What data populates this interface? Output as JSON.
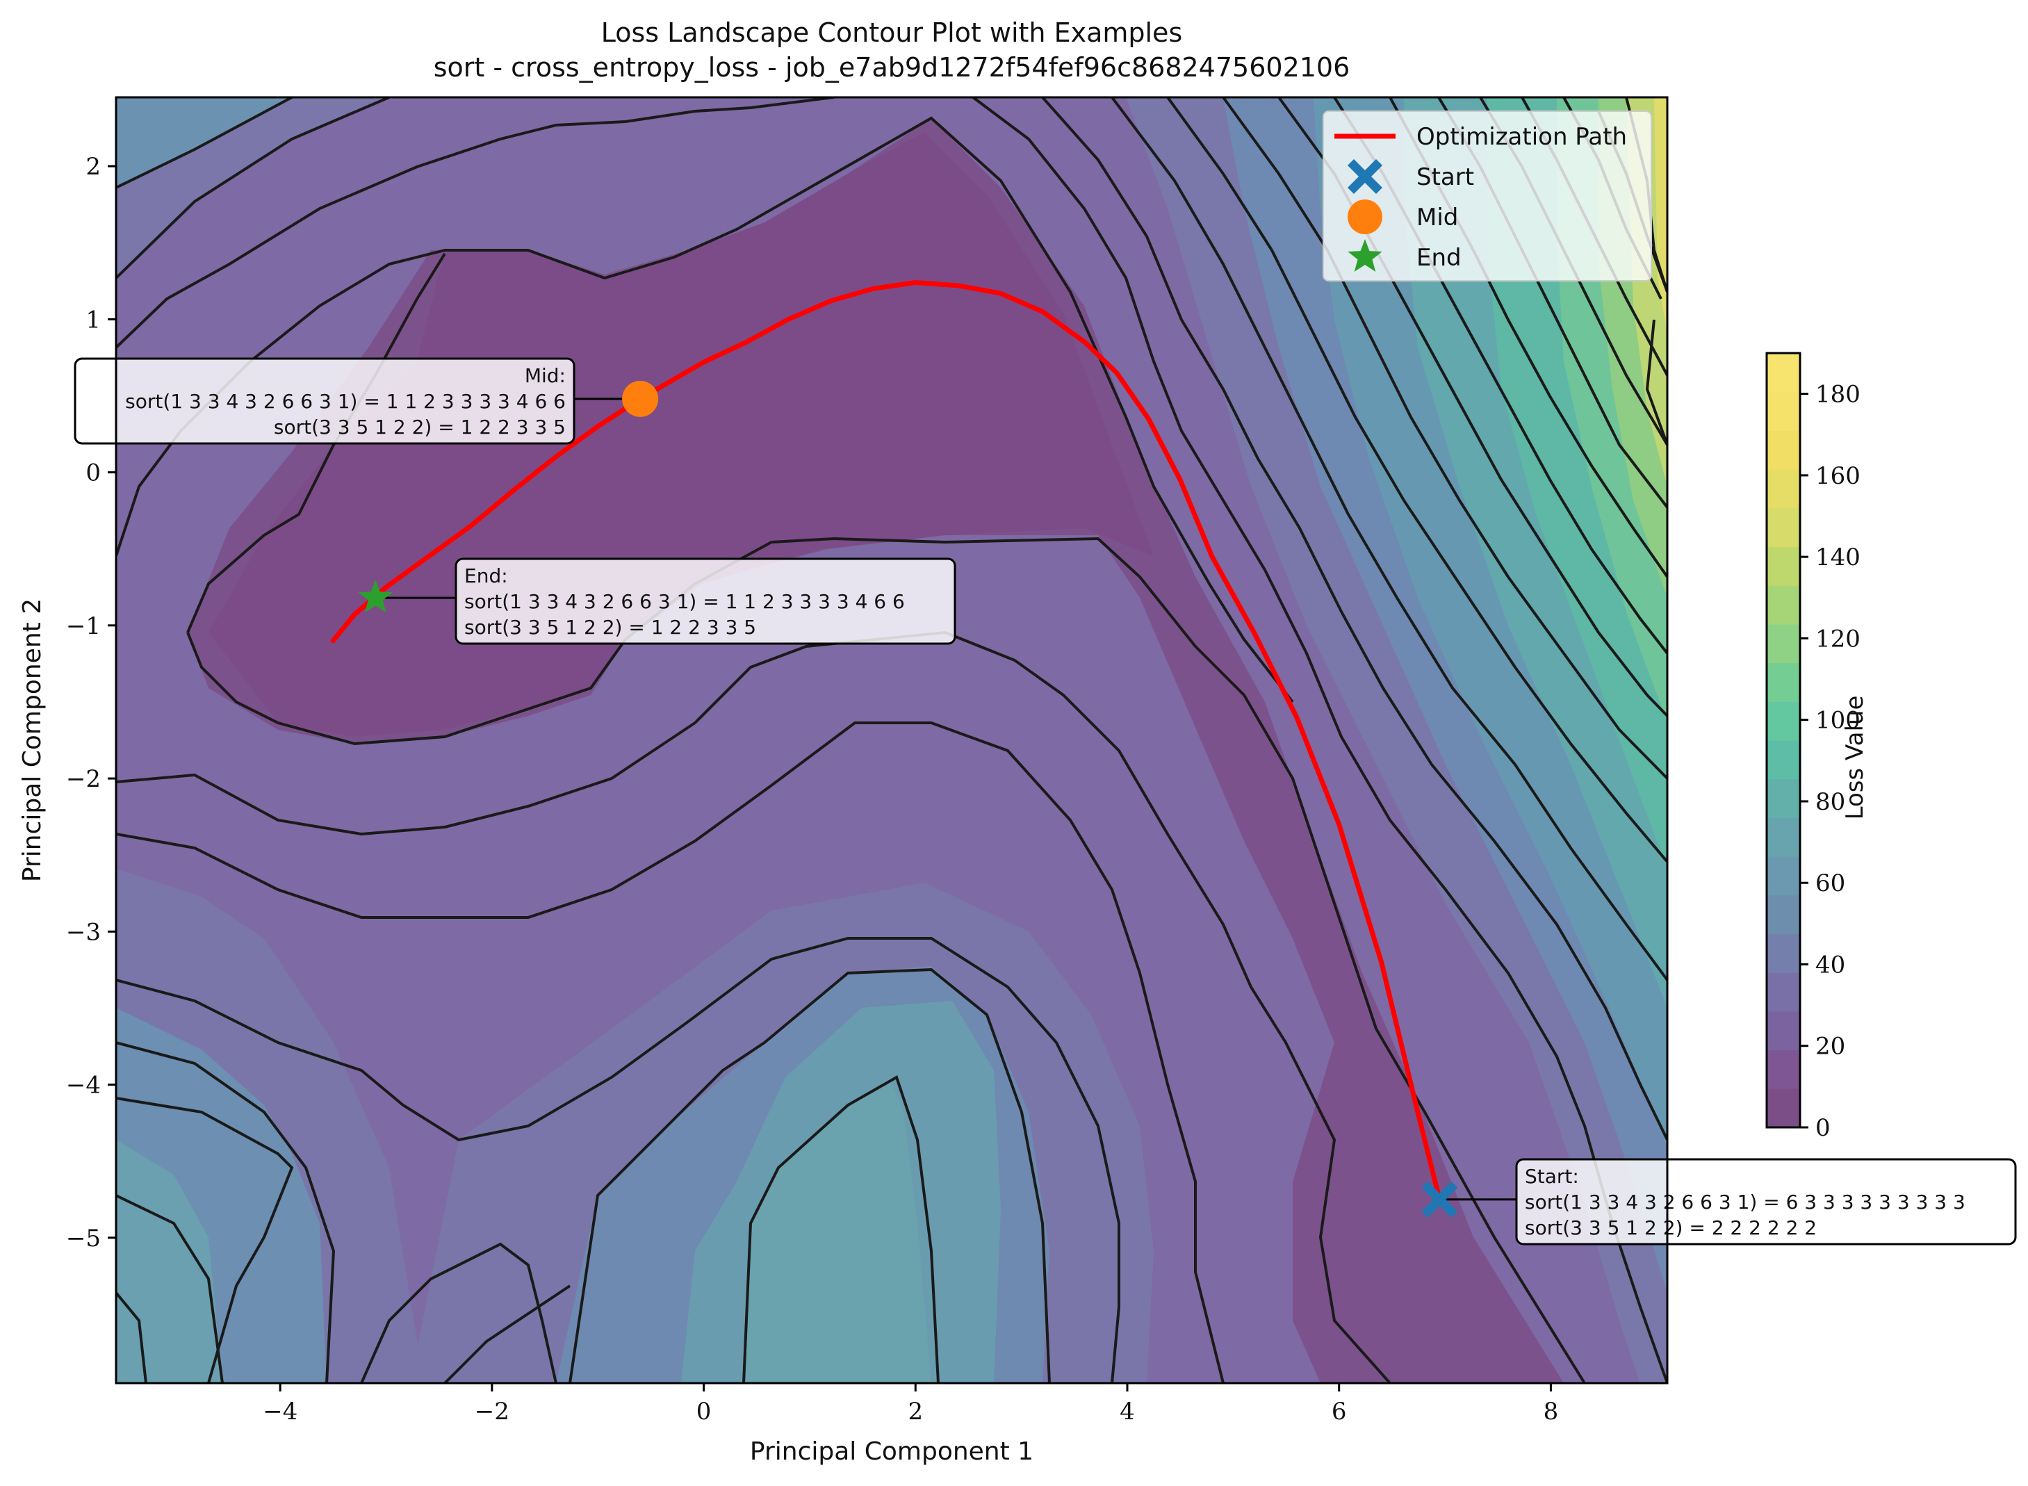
{
  "chart_data": {
    "type": "contour",
    "title": "Loss Landscape Contour Plot with Examples",
    "subtitle": "sort - cross_entropy_loss - job_e7ab9d1272f54fef96c8682475602106",
    "xlabel": "Principal Component 1",
    "ylabel": "Principal Component 2",
    "xlim": [
      -5.55,
      9.1
    ],
    "ylim": [
      -5.95,
      2.45
    ],
    "x_ticks": [
      -4,
      -2,
      0,
      2,
      4,
      6,
      8
    ],
    "x_tick_labels": [
      "−4",
      "−2",
      "0",
      "2",
      "4",
      "6",
      "8"
    ],
    "y_ticks": [
      2,
      1,
      0,
      -1,
      -2,
      -3,
      -4,
      -5
    ],
    "y_tick_labels": [
      "2",
      "1",
      "0",
      "−1",
      "−2",
      "−3",
      "−4",
      "−5"
    ],
    "colorbar": {
      "label": "Loss Value",
      "range": [
        0,
        190
      ],
      "ticks": [
        0,
        20,
        40,
        60,
        80,
        100,
        120,
        140,
        160,
        180
      ],
      "tick_labels": [
        "0",
        "20",
        "40",
        "60",
        "80",
        "100",
        "120",
        "140",
        "160",
        "180"
      ],
      "colormap": "viridis",
      "alpha": 0.7
    },
    "grid": false,
    "legend_position": "top-right",
    "legend": [
      {
        "label": "Optimization Path",
        "marker": "line",
        "color": "#ff0000"
      },
      {
        "label": "Start",
        "marker": "x",
        "color": "#1f77b4"
      },
      {
        "label": "Mid",
        "marker": "circle",
        "color": "#ff7f0e"
      },
      {
        "label": "End",
        "marker": "star",
        "color": "#2ca02c"
      }
    ],
    "path": {
      "name": "Optimization Path",
      "color": "#ff0000",
      "x": [
        6.95,
        6.75,
        6.4,
        6.0,
        5.6,
        5.2,
        4.8,
        4.5,
        4.2,
        3.9,
        3.6,
        3.2,
        2.8,
        2.4,
        2.0,
        1.6,
        1.2,
        0.8,
        0.4,
        0.0,
        -0.3,
        -0.6,
        -1.0,
        -1.4,
        -1.8,
        -2.2,
        -2.6,
        -3.0,
        -3.3,
        -3.5
      ],
      "y": [
        -4.75,
        -4.2,
        -3.2,
        -2.3,
        -1.6,
        -1.05,
        -0.55,
        -0.05,
        0.35,
        0.65,
        0.85,
        1.05,
        1.17,
        1.22,
        1.24,
        1.2,
        1.12,
        1.0,
        0.85,
        0.72,
        0.6,
        0.48,
        0.3,
        0.1,
        -0.12,
        -0.35,
        -0.55,
        -0.75,
        -0.93,
        -1.1
      ]
    },
    "markers": [
      {
        "name": "Start",
        "x": 6.95,
        "y": -4.75,
        "color": "#1f77b4"
      },
      {
        "name": "Mid",
        "x": -0.6,
        "y": 0.48,
        "color": "#ff7f0e"
      },
      {
        "name": "End",
        "x": -3.1,
        "y": -0.82,
        "color": "#2ca02c"
      }
    ],
    "annotations": [
      {
        "marker": "Mid",
        "align": "right",
        "lines": [
          "Mid:",
          "sort(1 3 3 4 3 2 6 6 3 1) = 1 1 2 3 3 3 3 4 6 6",
          "sort(3 3 5 1 2 2) = 1 2 2 3 3 5"
        ]
      },
      {
        "marker": "End",
        "align": "left",
        "lines": [
          "End:",
          "sort(1 3 3 4 3 2 6 6 3 1) = 1 1 2 3 3 3 3 4 6 6",
          "sort(3 3 5 1 2 2) = 1 2 2 3 3 5"
        ]
      },
      {
        "marker": "Start",
        "align": "left",
        "lines": [
          "Start:",
          "sort(1 3 3 4 3 2 6 6 3 1) = 6 3 3 3 3 3 3 3 3 3",
          "sort(3 3 5 1 2 2) = 2 2 2 2 2 2"
        ]
      }
    ]
  }
}
